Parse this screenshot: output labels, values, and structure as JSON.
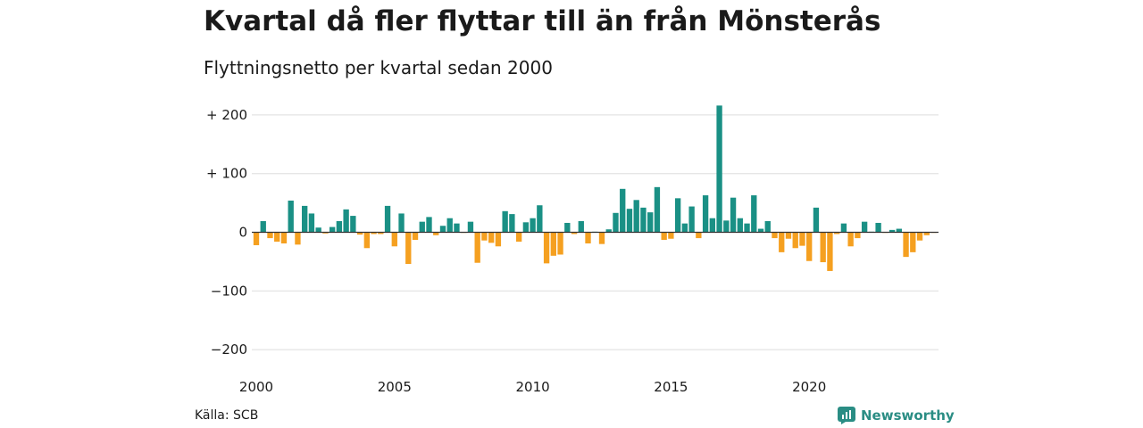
{
  "title": "Kvartal då fler flyttar till än från Mönsterås",
  "subtitle": "Flyttningsnetto per kvartal sedan 2000",
  "source": "Källa: SCB",
  "brand": "Newsworthy",
  "colors": {
    "positive": "#1a9085",
    "negative": "#f5a020",
    "grid": "#dddddd",
    "baseline": "#333333"
  },
  "chart_data": {
    "type": "bar",
    "start_year": 2000,
    "quarters_per_year": 4,
    "ylim": [
      -215,
      220
    ],
    "y_ticks": [
      {
        "value": 200,
        "label": "+ 200"
      },
      {
        "value": 100,
        "label": "+ 100"
      },
      {
        "value": 0,
        "label": "0"
      },
      {
        "value": -100,
        "label": "−100"
      },
      {
        "value": -200,
        "label": "−200"
      }
    ],
    "x_ticks": [
      {
        "year": 2000,
        "label": "2000"
      },
      {
        "year": 2005,
        "label": "2005"
      },
      {
        "year": 2010,
        "label": "2010"
      },
      {
        "year": 2015,
        "label": "2015"
      },
      {
        "year": 2020,
        "label": "2020"
      }
    ],
    "values": [
      -22,
      19,
      -10,
      -16,
      -19,
      54,
      -21,
      45,
      32,
      8,
      -2,
      9,
      19,
      39,
      28,
      -4,
      -27,
      -3,
      -3,
      45,
      -24,
      32,
      -54,
      -13,
      18,
      26,
      -5,
      11,
      24,
      15,
      -1,
      18,
      -52,
      -14,
      -18,
      -24,
      36,
      31,
      -16,
      17,
      24,
      46,
      -53,
      -40,
      -38,
      16,
      -3,
      19,
      -19,
      1,
      -20,
      5,
      33,
      74,
      40,
      55,
      42,
      34,
      77,
      -13,
      -11,
      58,
      15,
      44,
      -10,
      63,
      24,
      216,
      20,
      59,
      24,
      15,
      63,
      6,
      19,
      -10,
      -34,
      -11,
      -27,
      -23,
      -49,
      42,
      -51,
      -66,
      -3,
      15,
      -24,
      -10,
      18,
      1,
      16,
      -1,
      4,
      6,
      -42,
      -34,
      -14,
      -5,
      -1
    ]
  }
}
